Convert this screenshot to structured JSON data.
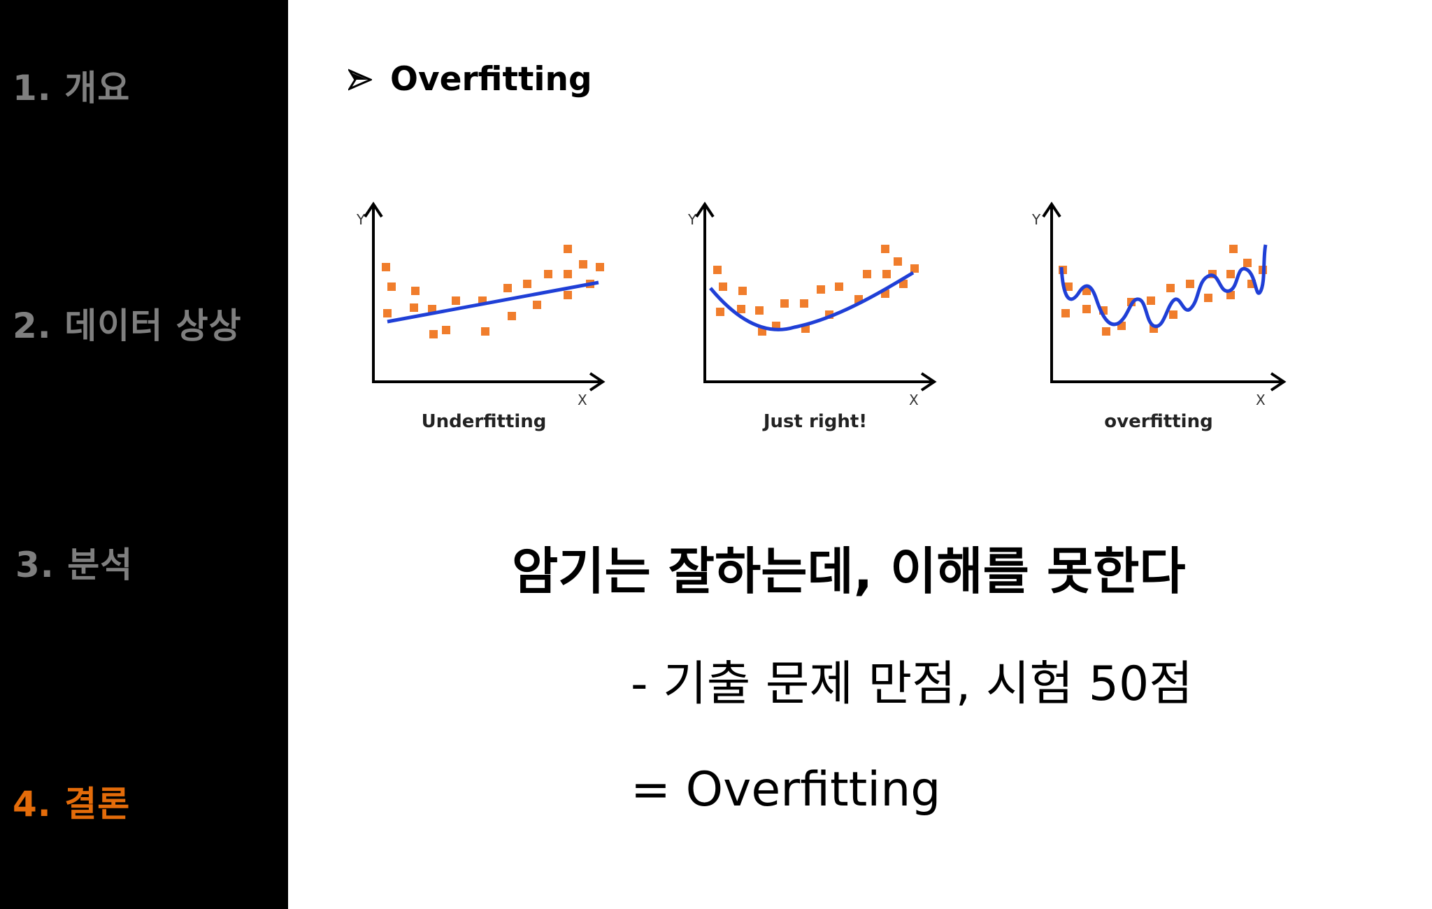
{
  "sidebar": {
    "items": [
      {
        "label": "1. 개요",
        "active": false
      },
      {
        "label": "2. 데이터 상상",
        "active": false
      },
      {
        "label": "3. 분석",
        "active": false
      },
      {
        "label": "4. 결론",
        "active": true
      }
    ],
    "colors": {
      "background": "#000000",
      "inactive": "#7f7f7f",
      "active": "#e46c0a"
    }
  },
  "section": {
    "bullet_icon": "arrow-bullet-icon",
    "title": "Overfitting"
  },
  "figure": {
    "point_color": "#f07d2c",
    "curve_color": "#1f3fd6",
    "panels": [
      {
        "caption": "Underfitting",
        "y_axis": "Y",
        "x_axis": "X"
      },
      {
        "caption": "Just right!",
        "y_axis": "Y",
        "x_axis": "X"
      },
      {
        "caption": "overfitting",
        "y_axis": "Y",
        "x_axis": "X"
      }
    ]
  },
  "content": {
    "statement": "암기는 잘하는데, 이해를 못한다",
    "detail": "- 기출 문제 만점, 시험 50점",
    "result": "= Overfitting"
  }
}
